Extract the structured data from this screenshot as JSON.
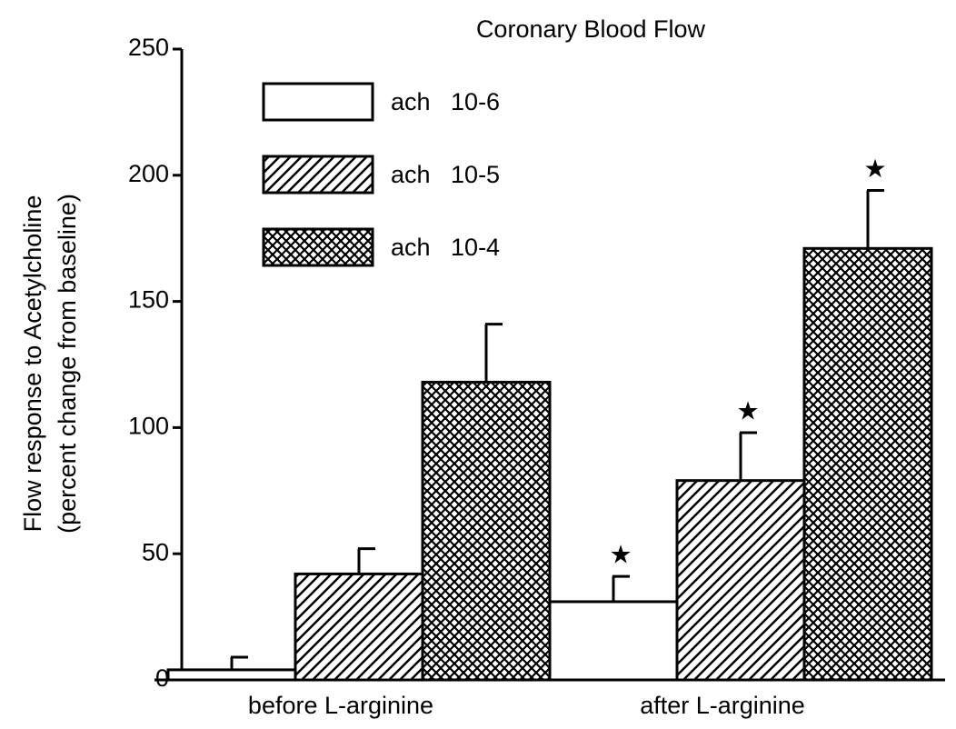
{
  "chart_data": {
    "type": "bar",
    "title": "Coronary Blood Flow",
    "ylabel": [
      "Flow response to Acetylcholine",
      "(percent change from baseline)"
    ],
    "categories": [
      "before L-arginine",
      "after L-arginine"
    ],
    "series": [
      {
        "name": "ach   10-6",
        "color": "#ffffff",
        "pattern": "none",
        "values": [
          4,
          31
        ],
        "errors": [
          5,
          10
        ],
        "markers": [
          null,
          "★"
        ]
      },
      {
        "name": "ach   10-5",
        "color": "#ffffff",
        "pattern": "diagonal",
        "values": [
          42,
          79
        ],
        "errors": [
          10,
          19
        ],
        "markers": [
          null,
          "★"
        ]
      },
      {
        "name": "ach   10-4",
        "color": "#ffffff",
        "pattern": "crosshatch",
        "values": [
          118,
          171
        ],
        "errors": [
          23,
          23
        ],
        "markers": [
          null,
          "★"
        ]
      }
    ],
    "ylim": [
      0,
      250
    ],
    "yticks": [
      0,
      50,
      100,
      150,
      200,
      250
    ],
    "grid": false
  }
}
